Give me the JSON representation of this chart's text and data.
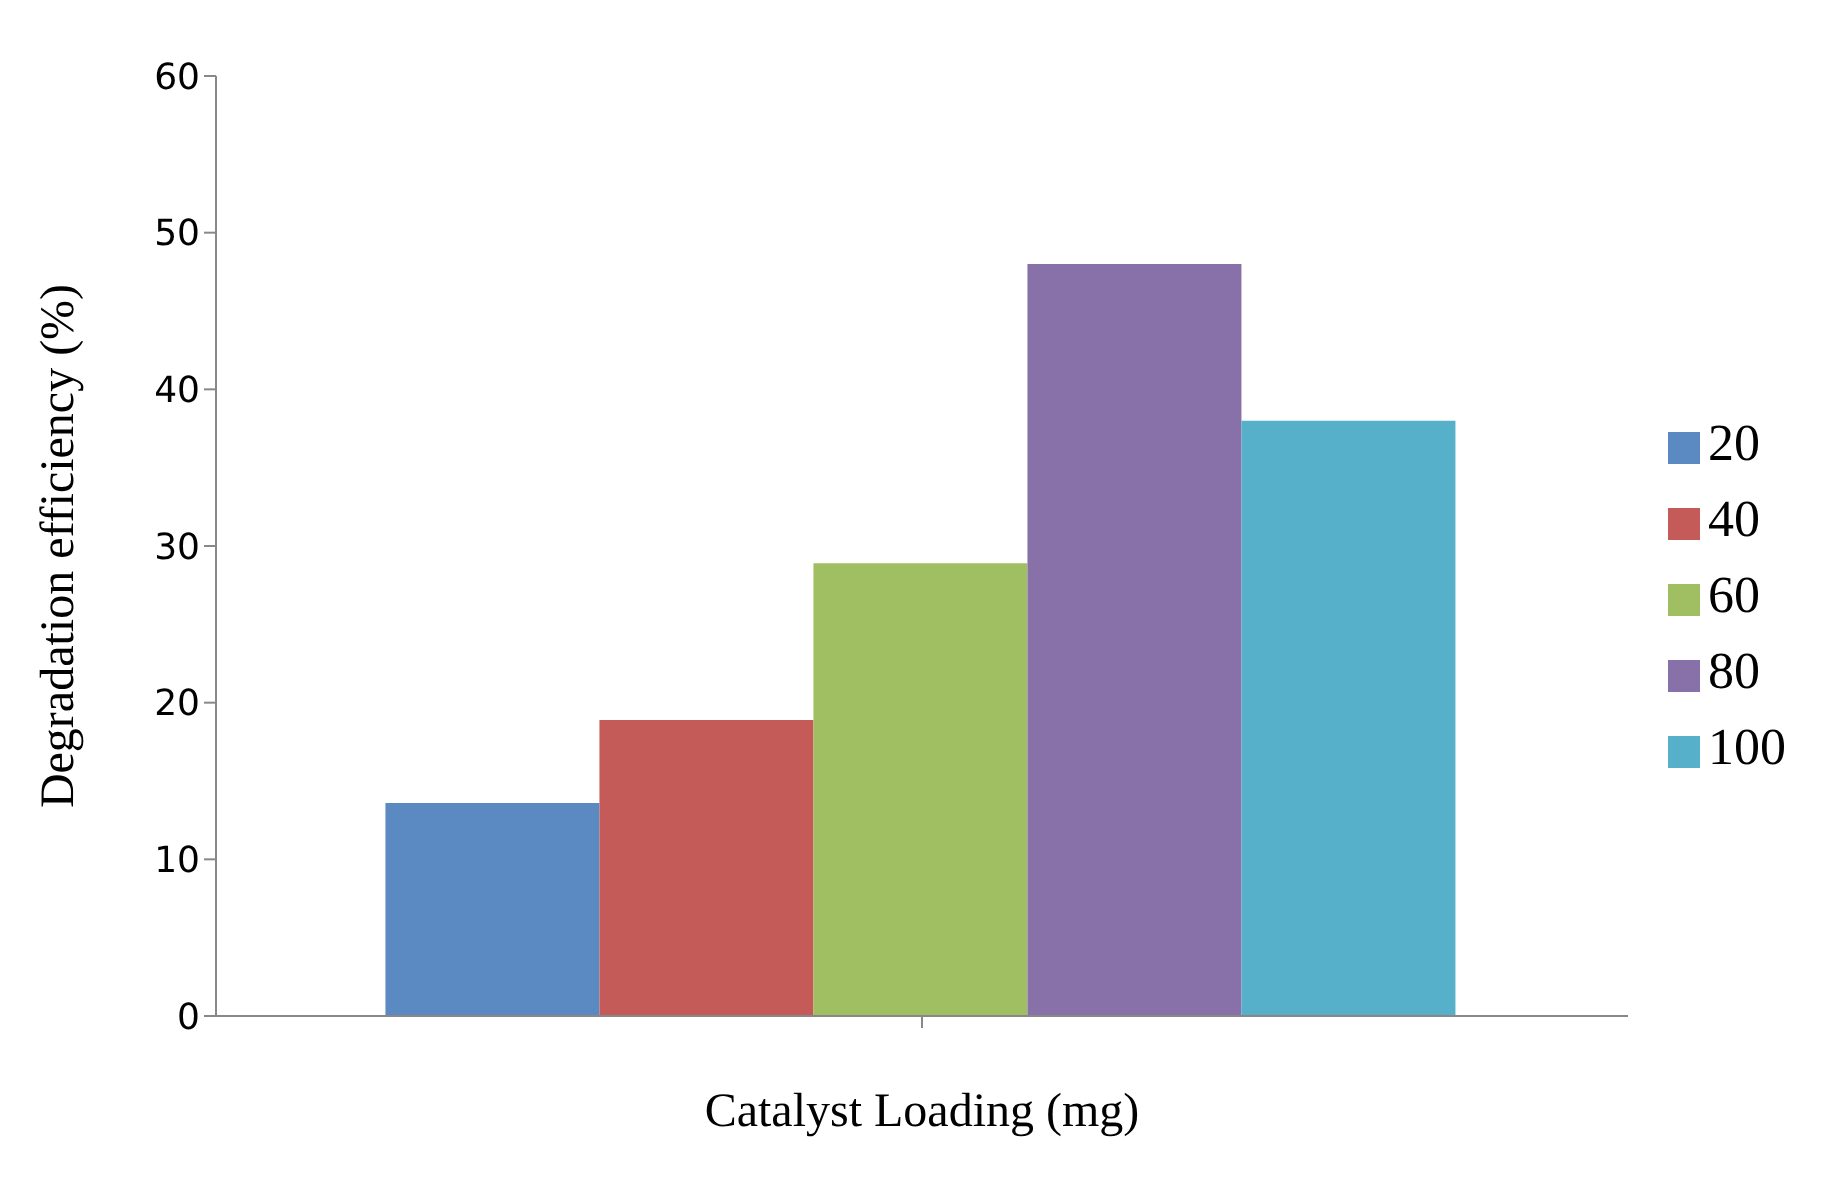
{
  "chart_data": {
    "type": "bar",
    "xlabel": "Catalyst Loading (mg)",
    "ylabel": "Degradation efficiency (%)",
    "categories": [
      null
    ],
    "series": [
      {
        "name": "20",
        "color": "#5b8ac3",
        "values": [
          13.6
        ]
      },
      {
        "name": "40",
        "color": "#c45b58",
        "values": [
          18.9
        ]
      },
      {
        "name": "60",
        "color": "#a0bf63",
        "values": [
          28.9
        ]
      },
      {
        "name": "80",
        "color": "#8870a8",
        "values": [
          48
        ]
      },
      {
        "name": "100",
        "color": "#56b0c9",
        "values": [
          38
        ]
      }
    ],
    "ylim": [
      0,
      60
    ],
    "yticks": [
      0,
      10,
      20,
      30,
      40,
      50,
      60
    ],
    "grid": false,
    "legend": "right"
  }
}
